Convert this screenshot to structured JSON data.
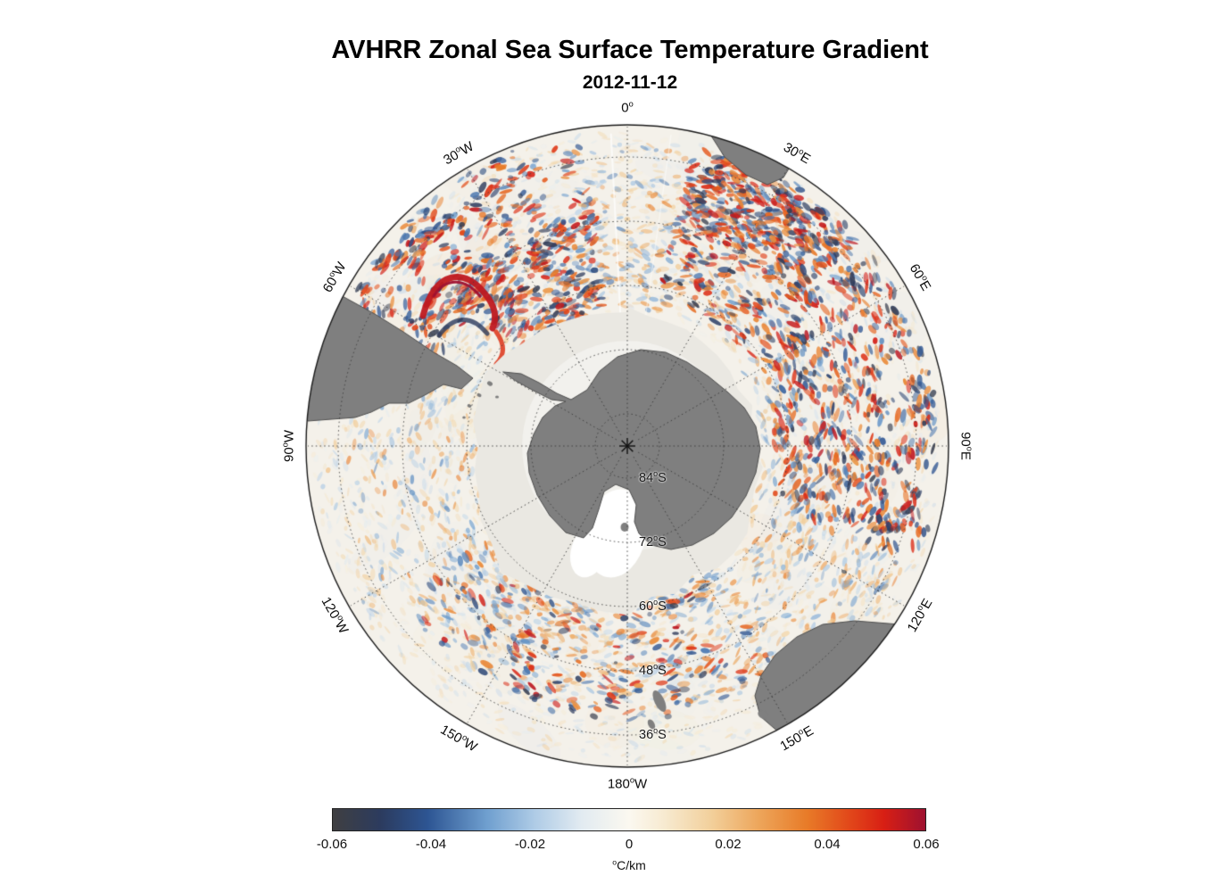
{
  "figure": {
    "title": "AVHRR Zonal Sea Surface Temperature Gradient",
    "subtitle": "2012-11-12"
  },
  "map": {
    "meridians": [
      {
        "deg": 0,
        "text": "0",
        "hemi": ""
      },
      {
        "deg": 30,
        "text": "30",
        "hemi": "E"
      },
      {
        "deg": 60,
        "text": "60",
        "hemi": "E"
      },
      {
        "deg": 90,
        "text": "90",
        "hemi": "E"
      },
      {
        "deg": 120,
        "text": "120",
        "hemi": "E"
      },
      {
        "deg": 150,
        "text": "150",
        "hemi": "E"
      },
      {
        "deg": 180,
        "text": "180",
        "hemi": "W"
      },
      {
        "deg": 210,
        "text": "150",
        "hemi": "W"
      },
      {
        "deg": 240,
        "text": "120",
        "hemi": "W"
      },
      {
        "deg": 270,
        "text": "90",
        "hemi": "W"
      },
      {
        "deg": 300,
        "text": "60",
        "hemi": "W"
      },
      {
        "deg": 330,
        "text": "30",
        "hemi": "W"
      }
    ],
    "parallels": [
      {
        "lat": 84,
        "text": "84",
        "hemi": "S"
      },
      {
        "lat": 72,
        "text": "72",
        "hemi": "S"
      },
      {
        "lat": 60,
        "text": "60",
        "hemi": "S"
      },
      {
        "lat": 48,
        "text": "48",
        "hemi": "S"
      },
      {
        "lat": 36,
        "text": "36",
        "hemi": "S"
      }
    ]
  },
  "colorbar": {
    "ticks": [
      "-0.06",
      "-0.04",
      "-0.02",
      "0",
      "0.02",
      "0.04",
      "0.06"
    ],
    "unit_text": "C/km",
    "stops": [
      {
        "t": 0.0,
        "c": "#3f3f41"
      },
      {
        "t": 0.08,
        "c": "#2c3b5e"
      },
      {
        "t": 0.16,
        "c": "#2d5593"
      },
      {
        "t": 0.26,
        "c": "#6f9fcf"
      },
      {
        "t": 0.34,
        "c": "#aecbe6"
      },
      {
        "t": 0.42,
        "c": "#e2ebf1"
      },
      {
        "t": 0.5,
        "c": "#fbf8f0"
      },
      {
        "t": 0.56,
        "c": "#f7ead0"
      },
      {
        "t": 0.64,
        "c": "#f2cf9a"
      },
      {
        "t": 0.72,
        "c": "#eda55a"
      },
      {
        "t": 0.8,
        "c": "#e87b28"
      },
      {
        "t": 0.87,
        "c": "#e2491a"
      },
      {
        "t": 0.93,
        "c": "#d81f14"
      },
      {
        "t": 1.0,
        "c": "#9e1130"
      }
    ]
  },
  "colors": {
    "land": "#7f7f7f",
    "land_edge": "#4f4f4f",
    "ocean": "#f4f1ea",
    "ice": "#eae8e2",
    "grid": "#3a3a3a",
    "outline": "#1a1a1a",
    "label": "#111111"
  },
  "chart_data": {
    "type": "heatmap",
    "title": "AVHRR Zonal Sea Surface Temperature Gradient",
    "subtitle_date": "2012-11-12",
    "projection": "south polar stereographic, South Pole centered",
    "variable": "zonal sea surface temperature gradient",
    "units": "°C/km",
    "value_range": [
      -0.06,
      0.06
    ],
    "colorbar_ticks": [
      -0.06,
      -0.04,
      -0.02,
      0,
      0.02,
      0.04,
      0.06
    ],
    "colormap": "diverging: dark gray / navy / blue (negative) through white (zero) to orange / red / crimson (positive)",
    "graticule": {
      "parallels_deg_S": [
        84,
        72,
        60,
        48,
        36
      ],
      "outer_boundary_deg_S": 30,
      "meridian_spacing_deg": 30,
      "meridian_labels": [
        "0°",
        "30°E",
        "60°E",
        "90°E",
        "120°E",
        "150°E",
        "180°W",
        "150°W",
        "120°W",
        "90°W",
        "60°W",
        "30°W"
      ],
      "style": "dotted"
    },
    "features": [
      "Antarctica land mass in gray at pole with white Ross Sea embayment",
      "pale gray sea-ice / no-data halo surrounding Antarctica to roughly 60°S",
      "gray land: tip of South America (upper left), southern Africa (top right), Australia (lower right), New Zealand (bottom)",
      "mesoscale red/blue gradient filaments strongest along the Antarctic Circumpolar Current, densest 30°E-90°E and near Drake Passage / Falklands where a bright red streak appears"
    ]
  }
}
